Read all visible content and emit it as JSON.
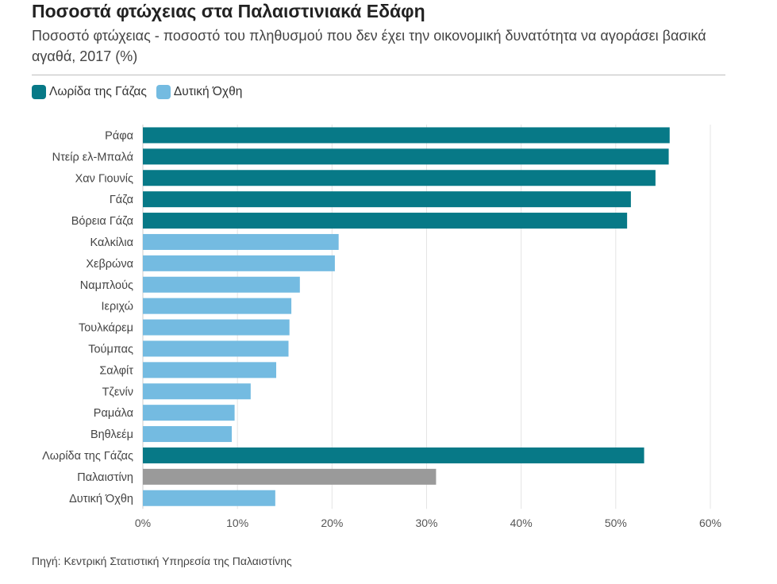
{
  "title": "Ποσοστά φτώχειας στα Παλαιστινιακά Εδάφη",
  "subtitle": "Ποσοστό φτώχειας - ποσοστό του πληθυσμού που δεν έχει την οικονομική δυνατότητα να αγοράσει βασικά αγαθά, 2017 (%)",
  "source": "Πηγή: Κεντρική Στατιστική Υπηρεσία της Παλαιστίνης",
  "colors": {
    "gaza": "#077987",
    "westbank": "#74BBE1",
    "palestine": "#9A9A9A",
    "grid": "#e4e4e4"
  },
  "legend": [
    {
      "label": "Λωρίδα της Γάζας",
      "color": "#077987"
    },
    {
      "label": "Δυτική Όχθη",
      "color": "#74BBE1"
    }
  ],
  "chart_data": {
    "type": "bar",
    "orientation": "horizontal",
    "categories": [
      "Ράφα",
      "Ντείρ ελ-Μπαλά",
      "Χαν Γιουνίς",
      "Γάζα",
      "Βόρεια Γάζα",
      "Καλκίλια",
      "Χεβρώνα",
      "Ναμπλούς",
      "Ιεριχώ",
      "Τουλκάρεμ",
      "Τούμπας",
      "Σαλφίτ",
      "Τζενίν",
      "Ραμάλα",
      "Βηθλεέμ",
      "Λωρίδα της Γάζας",
      "Παλαιστίνη",
      "Δυτική Όχθη"
    ],
    "values": [
      55.7,
      55.6,
      54.2,
      51.6,
      51.2,
      20.7,
      20.3,
      16.6,
      15.7,
      15.5,
      15.4,
      14.1,
      11.4,
      9.7,
      9.4,
      53.0,
      31.0,
      14.0
    ],
    "groups": [
      "gaza",
      "gaza",
      "gaza",
      "gaza",
      "gaza",
      "westbank",
      "westbank",
      "westbank",
      "westbank",
      "westbank",
      "westbank",
      "westbank",
      "westbank",
      "westbank",
      "westbank",
      "gaza",
      "palestine",
      "westbank"
    ],
    "xlim": [
      0,
      60
    ],
    "xticks": [
      0,
      10,
      20,
      30,
      40,
      50,
      60
    ],
    "xtick_labels": [
      "0%",
      "10%",
      "20%",
      "30%",
      "40%",
      "50%",
      "60%"
    ],
    "grid": true,
    "legend_position": "top-left"
  }
}
